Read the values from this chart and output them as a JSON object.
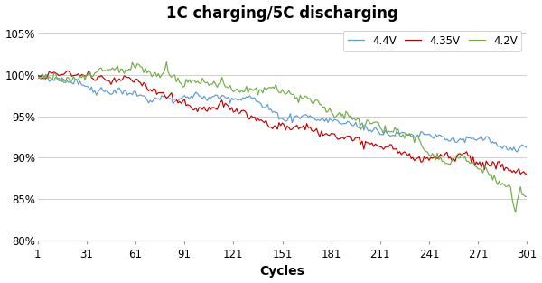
{
  "title": "1C charging/5C discharging",
  "xlabel": "Cycles",
  "xlim": [
    1,
    301
  ],
  "ylim": [
    0.8,
    1.06
  ],
  "yticks": [
    0.8,
    0.85,
    0.9,
    0.95,
    1.0,
    1.05
  ],
  "xticks": [
    1,
    31,
    61,
    91,
    121,
    151,
    181,
    211,
    241,
    271,
    301
  ],
  "series": [
    {
      "label": "4.4V",
      "color": "#5B9BD5"
    },
    {
      "label": "4.35V",
      "color": "#C00000"
    },
    {
      "label": "4.2V",
      "color": "#70AD47"
    }
  ],
  "n_cycles": 301,
  "background_color": "#ffffff",
  "grid_color": "#c8c8c8",
  "title_fontsize": 12,
  "label_fontsize": 10,
  "tick_fontsize": 8.5
}
